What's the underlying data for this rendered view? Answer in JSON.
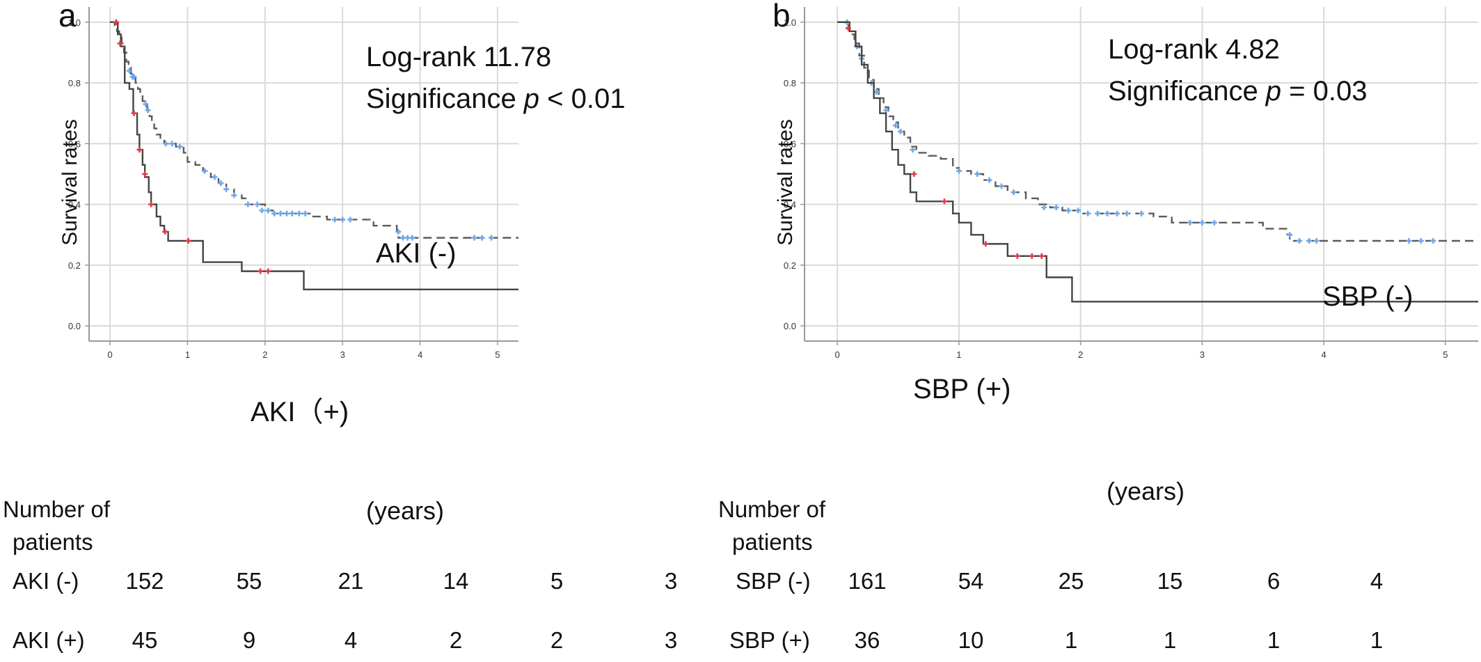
{
  "chart_data": [
    {
      "type": "line",
      "panel_label": "a",
      "ylabel": "Survival  rates",
      "xlabel": "(years)",
      "xlim": [
        -0.27,
        5.27
      ],
      "ylim": [
        -0.05,
        1.05
      ],
      "xticks": [
        "0",
        "1",
        "2",
        "3",
        "4",
        "5"
      ],
      "yticks": [
        "0.0",
        "0.2",
        "0.4",
        "0.6",
        "0.8",
        "1.0"
      ],
      "grid": true,
      "annotation_line1": "Log-rank 11.78",
      "annotation_line2_prefix": "Significance ",
      "annotation_line2_italic": "p",
      "annotation_line2_suffix": " < 0.01",
      "series": [
        {
          "label": "AKI (-)",
          "color": "#5b5b5b",
          "censor_color": "#6fa8e8",
          "dashed": true,
          "steps": [
            [
              0,
              1.0
            ],
            [
              0.06,
              0.99
            ],
            [
              0.09,
              0.97
            ],
            [
              0.12,
              0.95
            ],
            [
              0.15,
              0.93
            ],
            [
              0.18,
              0.9
            ],
            [
              0.21,
              0.87
            ],
            [
              0.24,
              0.85
            ],
            [
              0.27,
              0.83
            ],
            [
              0.3,
              0.82
            ],
            [
              0.33,
              0.8
            ],
            [
              0.36,
              0.78
            ],
            [
              0.39,
              0.76
            ],
            [
              0.42,
              0.74
            ],
            [
              0.45,
              0.73
            ],
            [
              0.48,
              0.71
            ],
            [
              0.51,
              0.69
            ],
            [
              0.54,
              0.67
            ],
            [
              0.57,
              0.65
            ],
            [
              0.6,
              0.63
            ],
            [
              0.65,
              0.61
            ],
            [
              0.7,
              0.6
            ],
            [
              0.85,
              0.59
            ],
            [
              0.95,
              0.57
            ],
            [
              1.0,
              0.54
            ],
            [
              1.1,
              0.53
            ],
            [
              1.2,
              0.51
            ],
            [
              1.3,
              0.49
            ],
            [
              1.4,
              0.47
            ],
            [
              1.5,
              0.45
            ],
            [
              1.6,
              0.43
            ],
            [
              1.7,
              0.42
            ],
            [
              1.75,
              0.4
            ],
            [
              1.85,
              0.4
            ],
            [
              2.0,
              0.38
            ],
            [
              2.1,
              0.37
            ],
            [
              2.6,
              0.36
            ],
            [
              2.8,
              0.35
            ],
            [
              3.4,
              0.33
            ],
            [
              3.7,
              0.31
            ],
            [
              3.72,
              0.29
            ],
            [
              5.27,
              0.29
            ]
          ],
          "censors": [
            [
              0.08,
              1.0
            ],
            [
              0.25,
              0.84
            ],
            [
              0.29,
              0.82
            ],
            [
              0.31,
              0.82
            ],
            [
              0.46,
              0.73
            ],
            [
              0.49,
              0.71
            ],
            [
              0.72,
              0.6
            ],
            [
              0.8,
              0.6
            ],
            [
              0.9,
              0.59
            ],
            [
              1.22,
              0.51
            ],
            [
              1.35,
              0.49
            ],
            [
              1.43,
              0.47
            ],
            [
              1.5,
              0.45
            ],
            [
              1.6,
              0.43
            ],
            [
              1.78,
              0.4
            ],
            [
              1.9,
              0.4
            ],
            [
              1.96,
              0.38
            ],
            [
              2.04,
              0.38
            ],
            [
              2.12,
              0.37
            ],
            [
              2.2,
              0.37
            ],
            [
              2.28,
              0.37
            ],
            [
              2.35,
              0.37
            ],
            [
              2.44,
              0.37
            ],
            [
              2.52,
              0.37
            ],
            [
              2.9,
              0.35
            ],
            [
              3.0,
              0.35
            ],
            [
              3.1,
              0.35
            ],
            [
              3.72,
              0.31
            ],
            [
              3.78,
              0.29
            ],
            [
              3.84,
              0.29
            ],
            [
              3.9,
              0.29
            ],
            [
              4.7,
              0.29
            ],
            [
              4.8,
              0.29
            ],
            [
              4.92,
              0.29
            ]
          ]
        },
        {
          "label": "AKI（+)",
          "color": "#444444",
          "censor_color": "#e03a4a",
          "dashed": false,
          "steps": [
            [
              0,
              1.0
            ],
            [
              0.1,
              0.96
            ],
            [
              0.14,
              0.92
            ],
            [
              0.19,
              0.8
            ],
            [
              0.25,
              0.78
            ],
            [
              0.3,
              0.7
            ],
            [
              0.35,
              0.63
            ],
            [
              0.38,
              0.58
            ],
            [
              0.42,
              0.53
            ],
            [
              0.45,
              0.49
            ],
            [
              0.5,
              0.44
            ],
            [
              0.53,
              0.4
            ],
            [
              0.6,
              0.36
            ],
            [
              0.65,
              0.33
            ],
            [
              0.7,
              0.31
            ],
            [
              0.75,
              0.28
            ],
            [
              1.2,
              0.21
            ],
            [
              1.7,
              0.18
            ],
            [
              2.5,
              0.12
            ],
            [
              5.27,
              0.12
            ]
          ],
          "censors": [
            [
              0.08,
              1.0
            ],
            [
              0.13,
              0.93
            ],
            [
              0.31,
              0.7
            ],
            [
              0.38,
              0.58
            ],
            [
              0.45,
              0.5
            ],
            [
              0.53,
              0.4
            ],
            [
              0.71,
              0.31
            ],
            [
              1.01,
              0.28
            ],
            [
              1.94,
              0.18
            ],
            [
              2.04,
              0.18
            ]
          ]
        }
      ],
      "risk_table": {
        "title_line1": "Number of",
        "title_line2": "patients",
        "rows": [
          {
            "label": "AKI (-)",
            "values": [
              "152",
              "55",
              "21",
              "14",
              "5",
              "3"
            ]
          },
          {
            "label": "AKI (+)",
            "values": [
              "45",
              "9",
              "4",
              "2",
              "2",
              "3"
            ]
          }
        ]
      }
    },
    {
      "type": "line",
      "panel_label": "b",
      "ylabel": "Survival  rates",
      "xlabel": "(years)",
      "xlim": [
        -0.27,
        5.27
      ],
      "ylim": [
        -0.05,
        1.05
      ],
      "xticks": [
        "0",
        "1",
        "2",
        "3",
        "4",
        "5"
      ],
      "yticks": [
        "0.0",
        "0.2",
        "0.4",
        "0.6",
        "0.8",
        "1.0"
      ],
      "grid": true,
      "annotation_line1": "Log-rank 4.82",
      "annotation_line2_prefix": "Significance ",
      "annotation_line2_italic": "p",
      "annotation_line2_suffix": " = 0.03",
      "series": [
        {
          "label": "SBP (-)",
          "color": "#5b5b5b",
          "censor_color": "#6fa8e8",
          "dashed": true,
          "steps": [
            [
              0,
              1.0
            ],
            [
              0.06,
              0.99
            ],
            [
              0.1,
              0.96
            ],
            [
              0.14,
              0.93
            ],
            [
              0.18,
              0.89
            ],
            [
              0.22,
              0.85
            ],
            [
              0.26,
              0.81
            ],
            [
              0.3,
              0.78
            ],
            [
              0.34,
              0.75
            ],
            [
              0.38,
              0.72
            ],
            [
              0.42,
              0.69
            ],
            [
              0.46,
              0.67
            ],
            [
              0.5,
              0.64
            ],
            [
              0.55,
              0.62
            ],
            [
              0.6,
              0.59
            ],
            [
              0.65,
              0.57
            ],
            [
              0.75,
              0.56
            ],
            [
              0.85,
              0.55
            ],
            [
              0.95,
              0.52
            ],
            [
              1.0,
              0.51
            ],
            [
              1.1,
              0.5
            ],
            [
              1.2,
              0.48
            ],
            [
              1.3,
              0.46
            ],
            [
              1.4,
              0.44
            ],
            [
              1.55,
              0.42
            ],
            [
              1.65,
              0.4
            ],
            [
              1.75,
              0.39
            ],
            [
              1.85,
              0.38
            ],
            [
              2.0,
              0.37
            ],
            [
              2.6,
              0.36
            ],
            [
              2.75,
              0.34
            ],
            [
              3.5,
              0.32
            ],
            [
              3.7,
              0.3
            ],
            [
              3.72,
              0.28
            ],
            [
              5.27,
              0.28
            ]
          ],
          "censors": [
            [
              0.08,
              1.0
            ],
            [
              0.16,
              0.92
            ],
            [
              0.2,
              0.88
            ],
            [
              0.28,
              0.8
            ],
            [
              0.32,
              0.77
            ],
            [
              0.4,
              0.71
            ],
            [
              0.48,
              0.66
            ],
            [
              0.52,
              0.64
            ],
            [
              0.62,
              0.58
            ],
            [
              1.0,
              0.51
            ],
            [
              1.15,
              0.5
            ],
            [
              1.25,
              0.48
            ],
            [
              1.35,
              0.46
            ],
            [
              1.45,
              0.44
            ],
            [
              1.7,
              0.39
            ],
            [
              1.8,
              0.39
            ],
            [
              1.9,
              0.38
            ],
            [
              1.98,
              0.38
            ],
            [
              2.06,
              0.37
            ],
            [
              2.14,
              0.37
            ],
            [
              2.22,
              0.37
            ],
            [
              2.3,
              0.37
            ],
            [
              2.38,
              0.37
            ],
            [
              2.5,
              0.37
            ],
            [
              2.9,
              0.34
            ],
            [
              3.0,
              0.34
            ],
            [
              3.1,
              0.34
            ],
            [
              3.72,
              0.3
            ],
            [
              3.8,
              0.28
            ],
            [
              3.88,
              0.28
            ],
            [
              3.94,
              0.28
            ],
            [
              4.7,
              0.28
            ],
            [
              4.8,
              0.28
            ],
            [
              4.9,
              0.28
            ]
          ]
        },
        {
          "label": "SBP (+)",
          "color": "#444444",
          "censor_color": "#e03a4a",
          "dashed": false,
          "steps": [
            [
              0,
              1.0
            ],
            [
              0.1,
              0.97
            ],
            [
              0.15,
              0.92
            ],
            [
              0.2,
              0.86
            ],
            [
              0.25,
              0.8
            ],
            [
              0.3,
              0.75
            ],
            [
              0.35,
              0.7
            ],
            [
              0.4,
              0.64
            ],
            [
              0.45,
              0.58
            ],
            [
              0.5,
              0.53
            ],
            [
              0.55,
              0.5
            ],
            [
              0.6,
              0.44
            ],
            [
              0.65,
              0.41
            ],
            [
              0.95,
              0.37
            ],
            [
              1.0,
              0.34
            ],
            [
              1.1,
              0.3
            ],
            [
              1.2,
              0.27
            ],
            [
              1.4,
              0.23
            ],
            [
              1.72,
              0.16
            ],
            [
              1.93,
              0.08
            ],
            [
              5.27,
              0.08
            ]
          ],
          "censors": [
            [
              0.09,
              0.98
            ],
            [
              0.63,
              0.5
            ],
            [
              0.88,
              0.41
            ],
            [
              1.22,
              0.27
            ],
            [
              1.48,
              0.23
            ],
            [
              1.6,
              0.23
            ],
            [
              1.68,
              0.23
            ]
          ]
        }
      ],
      "risk_table": {
        "title_line1": "Number of",
        "title_line2": "patients",
        "rows": [
          {
            "label": "SBP (-)",
            "values": [
              "161",
              "54",
              "25",
              "15",
              "6",
              "4"
            ]
          },
          {
            "label": "SBP (+)",
            "values": [
              "36",
              "10",
              "1",
              "1",
              "1",
              "1"
            ]
          }
        ]
      }
    }
  ]
}
